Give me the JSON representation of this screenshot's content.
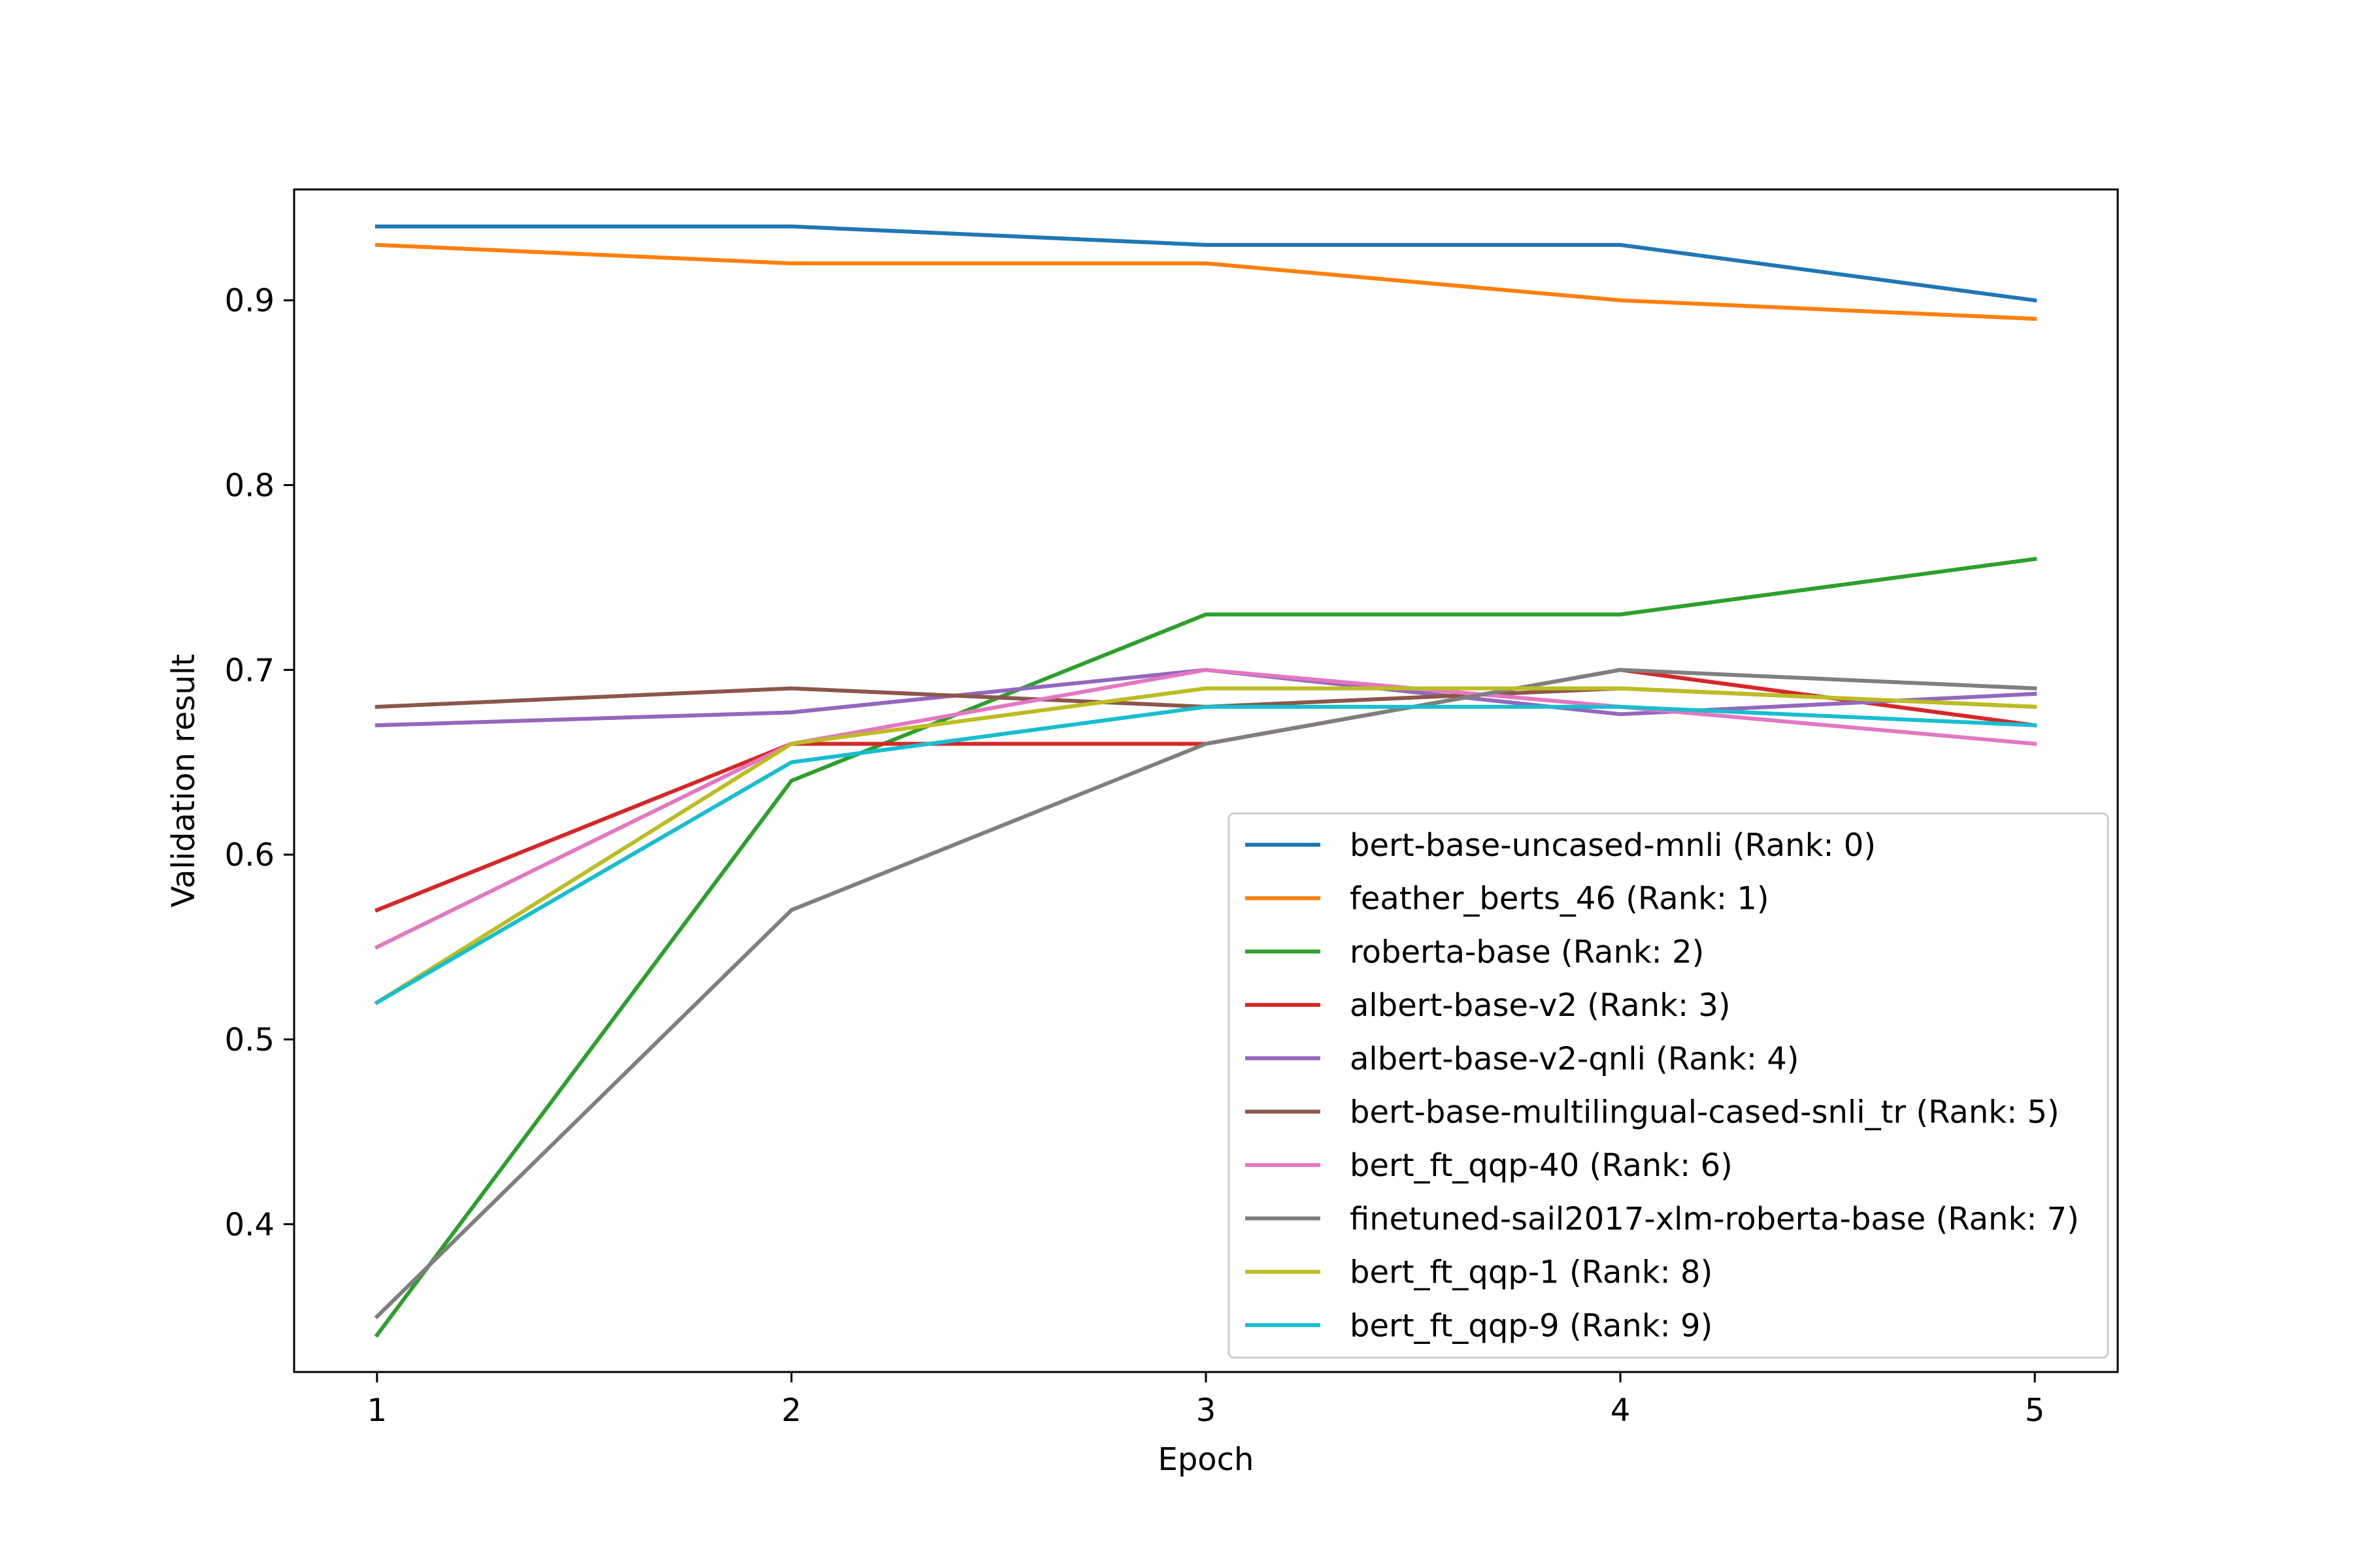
{
  "chart_data": {
    "type": "line",
    "title": "",
    "xlabel": "Epoch",
    "ylabel": "Validation result",
    "x": [
      1,
      2,
      3,
      4,
      5
    ],
    "xticks": [
      "1",
      "2",
      "3",
      "4",
      "5"
    ],
    "xlim": [
      0.8,
      5.2
    ],
    "yticks": [
      "0.4",
      "0.5",
      "0.6",
      "0.7",
      "0.8",
      "0.9"
    ],
    "ytick_values": [
      0.4,
      0.5,
      0.6,
      0.7,
      0.8,
      0.9
    ],
    "ylim": [
      0.32,
      0.96
    ],
    "grid": false,
    "legend_position": "lower-right",
    "series": [
      {
        "name": "bert-base-uncased-mnli (Rank: 0)",
        "color": "#1f77b4",
        "values": [
          0.94,
          0.94,
          0.93,
          0.93,
          0.9
        ]
      },
      {
        "name": "feather_berts_46 (Rank: 1)",
        "color": "#ff7f0e",
        "values": [
          0.93,
          0.92,
          0.92,
          0.9,
          0.89
        ]
      },
      {
        "name": "roberta-base (Rank: 2)",
        "color": "#2ca02c",
        "values": [
          0.34,
          0.64,
          0.73,
          0.73,
          0.76
        ]
      },
      {
        "name": "albert-base-v2 (Rank: 3)",
        "color": "#d62728",
        "values": [
          0.57,
          0.66,
          0.66,
          0.7,
          0.67
        ]
      },
      {
        "name": "albert-base-v2-qnli (Rank: 4)",
        "color": "#9467bd",
        "values": [
          0.67,
          0.677,
          0.7,
          0.676,
          0.687
        ]
      },
      {
        "name": "bert-base-multilingual-cased-snli_tr (Rank: 5)",
        "color": "#8c564b",
        "values": [
          0.68,
          0.69,
          0.68,
          0.69,
          0.68
        ]
      },
      {
        "name": "bert_ft_qqp-40 (Rank: 6)",
        "color": "#e377c2",
        "values": [
          0.55,
          0.66,
          0.7,
          0.68,
          0.66
        ]
      },
      {
        "name": "finetuned-sail2017-xlm-roberta-base (Rank: 7)",
        "color": "#7f7f7f",
        "values": [
          0.35,
          0.57,
          0.66,
          0.7,
          0.69
        ]
      },
      {
        "name": "bert_ft_qqp-1 (Rank: 8)",
        "color": "#bcbd22",
        "values": [
          0.52,
          0.66,
          0.69,
          0.69,
          0.68
        ]
      },
      {
        "name": "bert_ft_qqp-9 (Rank: 9)",
        "color": "#17becf",
        "values": [
          0.52,
          0.65,
          0.68,
          0.68,
          0.67
        ]
      }
    ]
  }
}
